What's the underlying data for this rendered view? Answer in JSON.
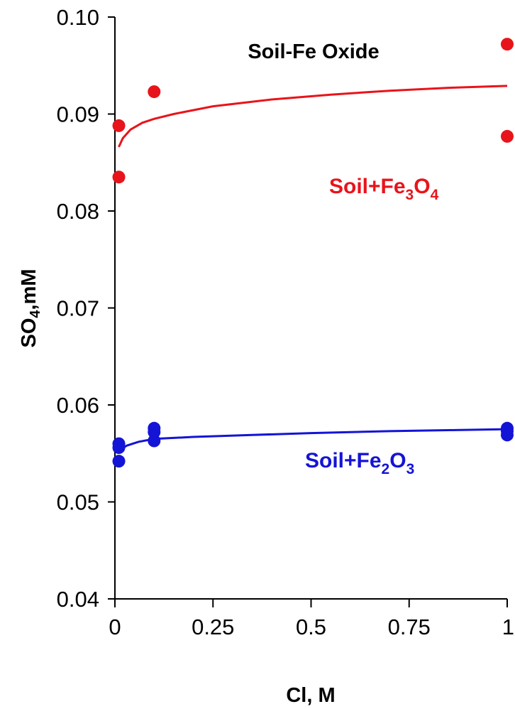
{
  "chart_data": {
    "type": "scatter",
    "title": "Soil-Fe Oxide",
    "xlabel": "Cl, M",
    "ylabel_parts": [
      "SO",
      "4",
      ",mM"
    ],
    "xlim": [
      0,
      1
    ],
    "ylim": [
      0.04,
      0.1
    ],
    "x_ticks": [
      0,
      0.25,
      0.5,
      0.75,
      1
    ],
    "x_tick_labels": [
      "0",
      "0.25",
      "0.5",
      "0.75",
      "1"
    ],
    "y_ticks": [
      0.04,
      0.05,
      0.06,
      0.07,
      0.08,
      0.09,
      0.1
    ],
    "y_tick_labels": [
      "0.04",
      "0.05",
      "0.06",
      "0.07",
      "0.08",
      "0.09",
      "0.10"
    ],
    "grid": false,
    "series": [
      {
        "name_parts": [
          "Soil+Fe",
          "3",
          "O",
          "4"
        ],
        "color": "#e8141b",
        "points": [
          {
            "x": 0.01,
            "y": 0.0835
          },
          {
            "x": 0.01,
            "y": 0.0888
          },
          {
            "x": 0.1,
            "y": 0.0923
          },
          {
            "x": 1,
            "y": 0.0972
          },
          {
            "x": 1,
            "y": 0.0877
          }
        ],
        "fit": [
          {
            "x": 0.01,
            "y": 0.0866
          },
          {
            "x": 0.02,
            "y": 0.0875
          },
          {
            "x": 0.04,
            "y": 0.0884
          },
          {
            "x": 0.07,
            "y": 0.0891
          },
          {
            "x": 0.1,
            "y": 0.0895
          },
          {
            "x": 0.15,
            "y": 0.09
          },
          {
            "x": 0.25,
            "y": 0.0908
          },
          {
            "x": 0.4,
            "y": 0.0915
          },
          {
            "x": 0.55,
            "y": 0.092
          },
          {
            "x": 0.7,
            "y": 0.0924
          },
          {
            "x": 0.85,
            "y": 0.0927
          },
          {
            "x": 1,
            "y": 0.0929
          }
        ]
      },
      {
        "name_parts": [
          "Soil+Fe",
          "2",
          "O",
          "3"
        ],
        "color": "#1414d6",
        "points": [
          {
            "x": 0.01,
            "y": 0.0542
          },
          {
            "x": 0.01,
            "y": 0.0556
          },
          {
            "x": 0.01,
            "y": 0.056
          },
          {
            "x": 0.1,
            "y": 0.0563
          },
          {
            "x": 0.1,
            "y": 0.0572
          },
          {
            "x": 0.1,
            "y": 0.0576
          },
          {
            "x": 1,
            "y": 0.0569
          },
          {
            "x": 1,
            "y": 0.0573
          },
          {
            "x": 1,
            "y": 0.0576
          }
        ],
        "fit": [
          {
            "x": 0.01,
            "y": 0.0553
          },
          {
            "x": 0.03,
            "y": 0.0558
          },
          {
            "x": 0.06,
            "y": 0.0562
          },
          {
            "x": 0.1,
            "y": 0.0565
          },
          {
            "x": 0.2,
            "y": 0.0567
          },
          {
            "x": 0.35,
            "y": 0.0569
          },
          {
            "x": 0.5,
            "y": 0.0571
          },
          {
            "x": 0.7,
            "y": 0.0573
          },
          {
            "x": 0.85,
            "y": 0.0574
          },
          {
            "x": 1,
            "y": 0.0575
          }
        ]
      }
    ]
  }
}
